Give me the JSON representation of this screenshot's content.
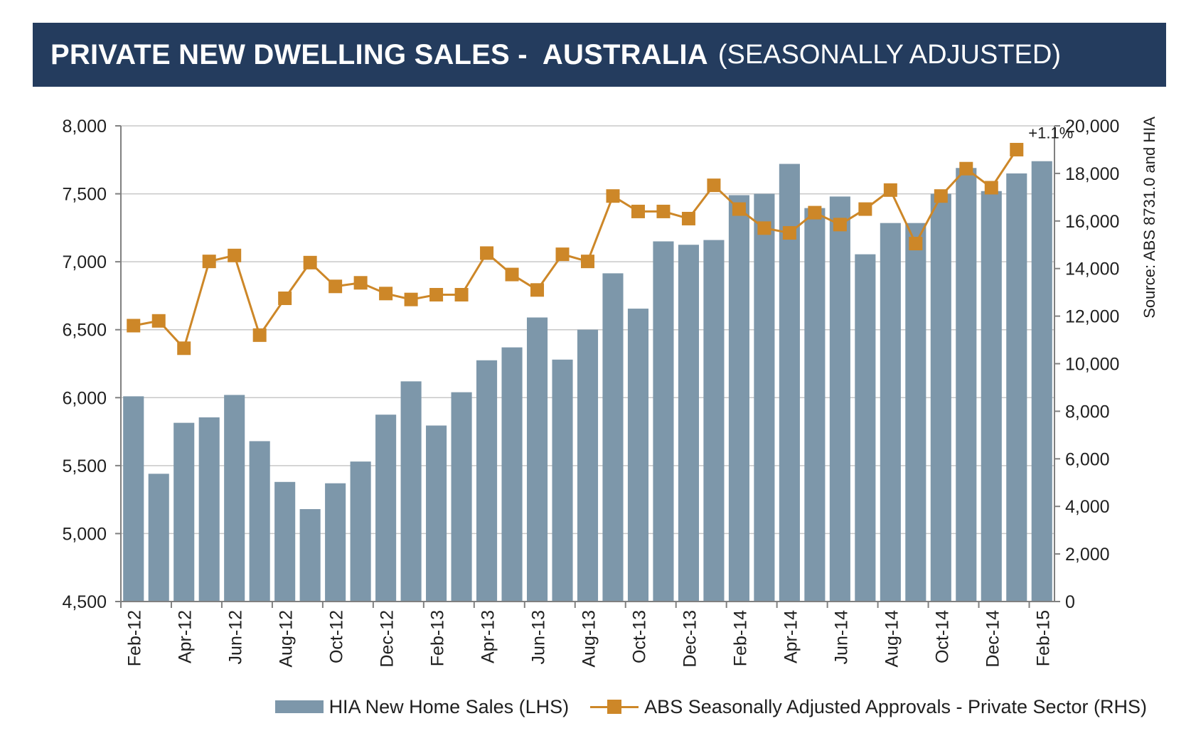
{
  "header": {
    "title_bold": "PRIVATE NEW DWELLING SALES -  AUSTRALIA",
    "title_normal": "(SEASONALLY ADJUSTED)"
  },
  "source_note": "Source: ABS 8731.0 and HIA",
  "colors": {
    "banner": "#243c5e",
    "bars": "#7d97aa",
    "line": "#cd8728",
    "grid": "#c8c8c8",
    "axis": "#808080"
  },
  "chart_data": {
    "type": "bar",
    "grid": "horizontal",
    "legend_position": "bottom",
    "months": [
      "Feb-12",
      "Mar-12",
      "Apr-12",
      "May-12",
      "Jun-12",
      "Jul-12",
      "Aug-12",
      "Sep-12",
      "Oct-12",
      "Nov-12",
      "Dec-12",
      "Jan-13",
      "Feb-13",
      "Mar-13",
      "Apr-13",
      "May-13",
      "Jun-13",
      "Jul-13",
      "Aug-13",
      "Sep-13",
      "Oct-13",
      "Nov-13",
      "Dec-13",
      "Jan-14",
      "Feb-14",
      "Mar-14",
      "Apr-14",
      "May-14",
      "Jun-14",
      "Jul-14",
      "Aug-14",
      "Sep-14",
      "Oct-14",
      "Nov-14",
      "Dec-14",
      "Jan-15",
      "Feb-15"
    ],
    "x_tick_labels": [
      "Feb-12",
      "Apr-12",
      "Jun-12",
      "Aug-12",
      "Oct-12",
      "Dec-12",
      "Feb-13",
      "Apr-13",
      "Jun-13",
      "Aug-13",
      "Oct-13",
      "Dec-13",
      "Feb-14",
      "Apr-14",
      "Jun-14",
      "Aug-14",
      "Oct-14",
      "Dec-14",
      "Feb-15"
    ],
    "y_left": {
      "min": 4500,
      "max": 8000,
      "ticks": [
        "4,500",
        "5,000",
        "5,500",
        "6,000",
        "6,500",
        "7,000",
        "7,500",
        "8,000"
      ]
    },
    "y_right": {
      "min": 0,
      "max": 20000,
      "ticks": [
        "0",
        "2,000",
        "4,000",
        "6,000",
        "8,000",
        "10,000",
        "12,000",
        "14,000",
        "16,000",
        "18,000",
        "20,000"
      ]
    },
    "series": [
      {
        "name": "HIA New Home Sales (LHS)",
        "kind": "bar",
        "axis": "left",
        "values": [
          6010,
          5440,
          5815,
          5855,
          6020,
          5680,
          5380,
          5180,
          5370,
          5530,
          5875,
          6120,
          5795,
          6040,
          6275,
          6370,
          6590,
          6280,
          6500,
          6915,
          6655,
          7150,
          7125,
          7160,
          7490,
          7500,
          7720,
          7395,
          7480,
          7055,
          7285,
          7285,
          7500,
          7690,
          7520,
          7650,
          7740
        ]
      },
      {
        "name": "ABS Seasonally Adjusted Approvals - Private Sector (RHS)",
        "kind": "line",
        "axis": "right",
        "values": [
          11600,
          11800,
          10650,
          14300,
          14550,
          11200,
          12750,
          14250,
          13250,
          13400,
          12950,
          12700,
          12900,
          12900,
          14650,
          13750,
          13100,
          14600,
          14300,
          17050,
          16400,
          16400,
          16100,
          17500,
          16500,
          15700,
          15500,
          16350,
          15850,
          16500,
          17300,
          15050,
          17050,
          18200,
          17400,
          19000
        ]
      }
    ],
    "annotation": "+1.1%"
  }
}
